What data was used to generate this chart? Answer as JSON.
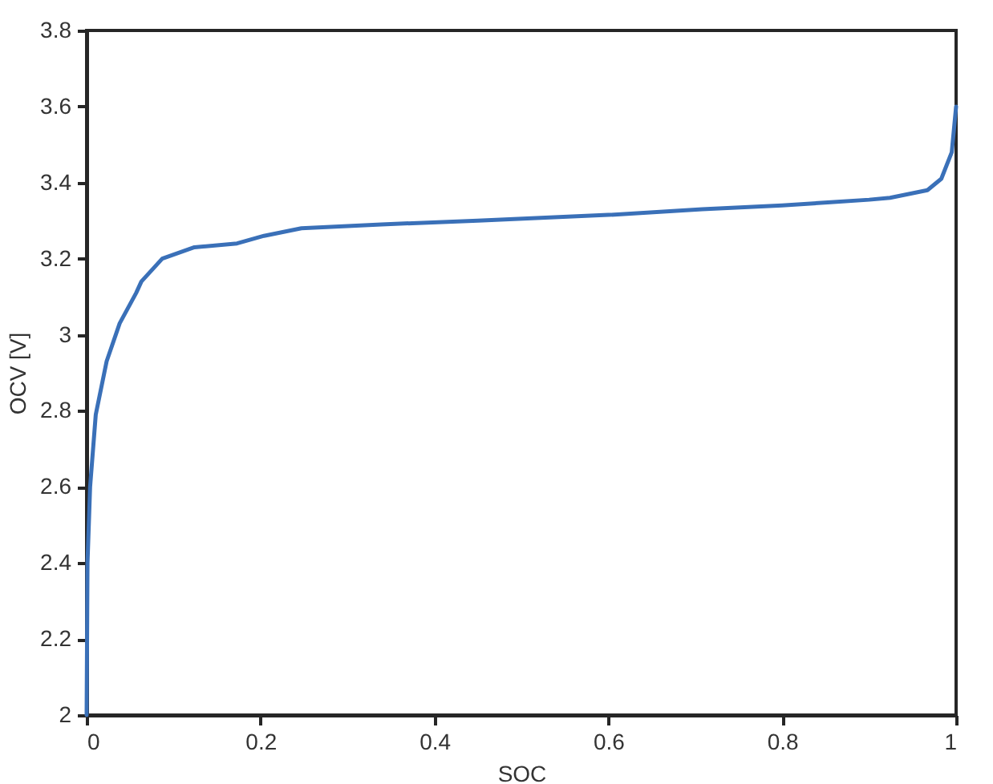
{
  "chart_data": {
    "type": "line",
    "xlabel": "SOC",
    "ylabel": "OCV [V]",
    "x": [
      0,
      0.001,
      0.004,
      0.0105,
      0.023,
      0.038,
      0.057,
      0.063,
      0.087,
      0.124,
      0.173,
      0.204,
      0.247,
      0.339,
      0.45,
      0.6,
      0.708,
      0.8,
      0.9,
      0.924,
      0.967,
      0.983,
      0.995,
      1.0
    ],
    "series": [
      {
        "color": "#3a70b8",
        "values": [
          2.0,
          2.4,
          2.6,
          2.79,
          2.93,
          3.03,
          3.11,
          3.14,
          3.2,
          3.23,
          3.24,
          3.26,
          3.28,
          3.29,
          3.3,
          3.315,
          3.33,
          3.34,
          3.355,
          3.36,
          3.38,
          3.41,
          3.48,
          3.6
        ]
      }
    ],
    "xlim": [
      0,
      1
    ],
    "xticks": [
      0,
      0.2,
      0.4,
      0.6,
      0.8,
      1
    ],
    "ylim": [
      2,
      3.8
    ],
    "yticks": [
      2,
      2.2,
      2.4,
      2.6,
      2.8,
      3,
      3.2,
      3.4,
      3.6,
      3.8
    ],
    "grid": false,
    "line_style": "solid",
    "marker": "none"
  }
}
